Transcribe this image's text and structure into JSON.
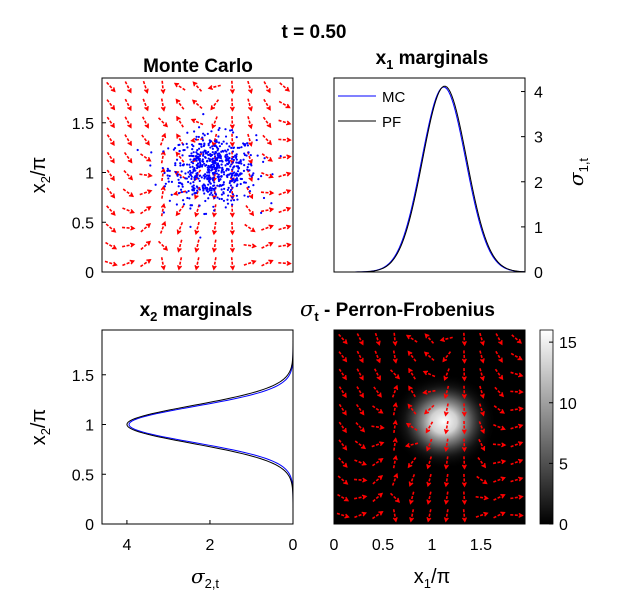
{
  "figure_title": "t = 0.50",
  "chart_data": [
    {
      "type": "scatter",
      "title": "Monte Carlo",
      "xlabel": "",
      "ylabel": "x2/π",
      "xlim": [
        0,
        1.95
      ],
      "ylim": [
        0,
        1.95
      ],
      "yticks": [
        "0",
        "0.5",
        "1",
        "1.5"
      ],
      "ytick_values": [
        0,
        0.5,
        1,
        1.5
      ],
      "particles": {
        "color": "#0000ff",
        "count": 600,
        "center": [
          1.13,
          1.03
        ],
        "spread": [
          0.22,
          0.17
        ]
      },
      "vector_field_color": "#ff0000"
    },
    {
      "type": "line",
      "title": "x1 marginals",
      "ylabel_right": "σ1,t",
      "xlim": [
        0,
        1.95
      ],
      "ylim": [
        0,
        4.3
      ],
      "yticks": [
        "0",
        "1",
        "2",
        "3",
        "4"
      ],
      "ytick_values": [
        0,
        1,
        2,
        3,
        4
      ],
      "legend": {
        "placement": "top-left",
        "entries": [
          "MC",
          "PF"
        ]
      },
      "series": [
        {
          "name": "MC",
          "color": "#0000ff",
          "peak_x": 1.12,
          "peak": 4.1,
          "width": 0.3
        },
        {
          "name": "PF",
          "color": "#000000",
          "peak_x": 1.13,
          "peak": 4.12,
          "width": 0.3
        }
      ]
    },
    {
      "type": "line",
      "title": "x2 marginals",
      "orientation": "horizontal",
      "xlabel": "σ2,t",
      "ylabel": "x2/π",
      "xlim": [
        4.6,
        0
      ],
      "ylim": [
        0,
        1.95
      ],
      "xticks": [
        "4",
        "2",
        "0"
      ],
      "xtick_values": [
        4,
        2,
        0
      ],
      "yticks": [
        "0",
        "0.5",
        "1",
        "1.5"
      ],
      "ytick_values": [
        0,
        0.5,
        1,
        1.5
      ],
      "series": [
        {
          "name": "MC",
          "color": "#0000ff",
          "peak_y": 1.0,
          "peak": 3.95,
          "width": 0.18
        },
        {
          "name": "PF",
          "color": "#000000",
          "peak_y": 1.0,
          "peak": 4.0,
          "width": 0.19
        }
      ]
    },
    {
      "type": "heatmap",
      "title": "σt - Perron-Frobenius",
      "xlabel": "x1/π",
      "xlim": [
        0,
        1.95
      ],
      "ylim": [
        0,
        1.95
      ],
      "xticks": [
        "0",
        "0.5",
        "1",
        "1.5"
      ],
      "xtick_values": [
        0,
        0.5,
        1,
        1.5
      ],
      "colormap": "gray",
      "clim": [
        0,
        16
      ],
      "colorbar_ticks": [
        "0",
        "5",
        "10",
        "15"
      ],
      "colorbar_values": [
        0,
        5,
        10,
        15
      ],
      "peak": {
        "center": [
          1.12,
          1.03
        ],
        "spread": [
          0.18,
          0.16
        ],
        "max": 16
      },
      "vector_field_color": "#ff0000"
    }
  ]
}
